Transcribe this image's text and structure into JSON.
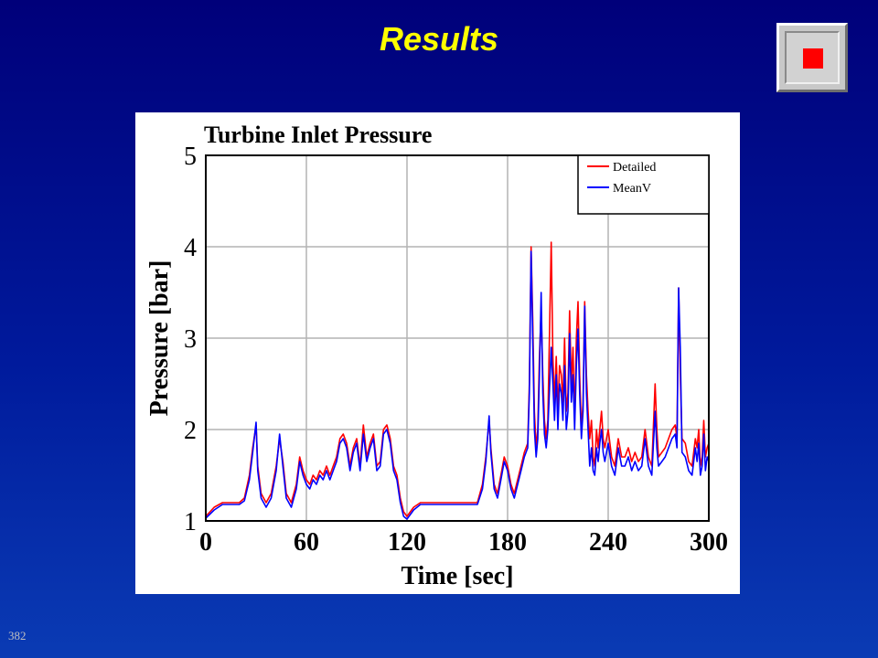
{
  "slide": {
    "title": "Results",
    "number": "382"
  },
  "colors": {
    "background": "#00007a",
    "title": "#ffff00",
    "detailed": "#ff0000",
    "meanv": "#0000ff"
  },
  "icons": {
    "stop": "stop-square-icon"
  },
  "chart_data": {
    "type": "line",
    "title": "Turbine Inlet Pressure",
    "xlabel": "Time [sec]",
    "ylabel": "Pressure [bar]",
    "xlim": [
      0,
      300
    ],
    "ylim": [
      1,
      5
    ],
    "xticks": [
      0,
      60,
      120,
      180,
      240,
      300
    ],
    "yticks": [
      1,
      2,
      3,
      4,
      5
    ],
    "grid": true,
    "legend": {
      "position": "top-right",
      "entries": [
        "Detailed",
        "MeanV"
      ]
    },
    "series": [
      {
        "name": "Detailed",
        "color": "#ff0000",
        "points": [
          [
            0,
            1.05
          ],
          [
            5,
            1.15
          ],
          [
            10,
            1.2
          ],
          [
            15,
            1.2
          ],
          [
            20,
            1.2
          ],
          [
            23,
            1.25
          ],
          [
            26,
            1.5
          ],
          [
            28,
            1.8
          ],
          [
            30,
            2.05
          ],
          [
            31,
            1.6
          ],
          [
            33,
            1.3
          ],
          [
            36,
            1.2
          ],
          [
            39,
            1.3
          ],
          [
            42,
            1.6
          ],
          [
            44,
            1.9
          ],
          [
            46,
            1.65
          ],
          [
            48,
            1.3
          ],
          [
            51,
            1.2
          ],
          [
            54,
            1.4
          ],
          [
            56,
            1.7
          ],
          [
            58,
            1.55
          ],
          [
            60,
            1.45
          ],
          [
            62,
            1.4
          ],
          [
            64,
            1.5
          ],
          [
            66,
            1.45
          ],
          [
            68,
            1.55
          ],
          [
            70,
            1.5
          ],
          [
            72,
            1.6
          ],
          [
            74,
            1.5
          ],
          [
            76,
            1.6
          ],
          [
            78,
            1.7
          ],
          [
            80,
            1.9
          ],
          [
            82,
            1.95
          ],
          [
            84,
            1.85
          ],
          [
            86,
            1.6
          ],
          [
            88,
            1.8
          ],
          [
            90,
            1.9
          ],
          [
            92,
            1.6
          ],
          [
            94,
            2.05
          ],
          [
            96,
            1.7
          ],
          [
            98,
            1.85
          ],
          [
            100,
            1.95
          ],
          [
            102,
            1.6
          ],
          [
            104,
            1.65
          ],
          [
            106,
            2.0
          ],
          [
            108,
            2.05
          ],
          [
            110,
            1.9
          ],
          [
            112,
            1.6
          ],
          [
            114,
            1.5
          ],
          [
            116,
            1.25
          ],
          [
            118,
            1.1
          ],
          [
            120,
            1.05
          ],
          [
            124,
            1.15
          ],
          [
            128,
            1.2
          ],
          [
            140,
            1.2
          ],
          [
            155,
            1.2
          ],
          [
            162,
            1.2
          ],
          [
            165,
            1.4
          ],
          [
            167,
            1.7
          ],
          [
            169,
            2.1
          ],
          [
            170,
            1.8
          ],
          [
            172,
            1.4
          ],
          [
            174,
            1.3
          ],
          [
            176,
            1.5
          ],
          [
            178,
            1.7
          ],
          [
            180,
            1.6
          ],
          [
            182,
            1.4
          ],
          [
            184,
            1.3
          ],
          [
            186,
            1.45
          ],
          [
            188,
            1.6
          ],
          [
            190,
            1.75
          ],
          [
            192,
            1.85
          ],
          [
            193,
            2.5
          ],
          [
            194,
            4.0
          ],
          [
            195,
            3.2
          ],
          [
            196,
            2.2
          ],
          [
            197,
            1.8
          ],
          [
            198,
            2.0
          ],
          [
            199,
            2.8
          ],
          [
            200,
            3.3
          ],
          [
            201,
            2.6
          ],
          [
            202,
            2.1
          ],
          [
            203,
            1.9
          ],
          [
            204,
            2.1
          ],
          [
            206,
            4.05
          ],
          [
            207,
            2.8
          ],
          [
            208,
            2.3
          ],
          [
            209,
            2.8
          ],
          [
            210,
            2.2
          ],
          [
            211,
            2.7
          ],
          [
            212,
            2.6
          ],
          [
            213,
            2.3
          ],
          [
            214,
            3.0
          ],
          [
            215,
            2.2
          ],
          [
            216,
            2.4
          ],
          [
            217,
            3.3
          ],
          [
            218,
            2.5
          ],
          [
            219,
            2.9
          ],
          [
            220,
            2.1
          ],
          [
            221,
            3.0
          ],
          [
            222,
            3.4
          ],
          [
            223,
            2.6
          ],
          [
            224,
            2.0
          ],
          [
            225,
            2.3
          ],
          [
            226,
            3.4
          ],
          [
            227,
            2.6
          ],
          [
            228,
            2.2
          ],
          [
            229,
            1.9
          ],
          [
            230,
            2.1
          ],
          [
            231,
            1.7
          ],
          [
            232,
            1.6
          ],
          [
            233,
            2.0
          ],
          [
            234,
            1.8
          ],
          [
            235,
            2.0
          ],
          [
            236,
            2.2
          ],
          [
            237,
            1.9
          ],
          [
            238,
            1.8
          ],
          [
            240,
            2.0
          ],
          [
            242,
            1.7
          ],
          [
            244,
            1.6
          ],
          [
            246,
            1.9
          ],
          [
            248,
            1.7
          ],
          [
            250,
            1.7
          ],
          [
            252,
            1.8
          ],
          [
            254,
            1.65
          ],
          [
            256,
            1.75
          ],
          [
            258,
            1.65
          ],
          [
            260,
            1.7
          ],
          [
            262,
            2.0
          ],
          [
            264,
            1.7
          ],
          [
            266,
            1.6
          ],
          [
            268,
            2.5
          ],
          [
            269,
            2.0
          ],
          [
            270,
            1.7
          ],
          [
            272,
            1.75
          ],
          [
            274,
            1.8
          ],
          [
            276,
            1.9
          ],
          [
            278,
            2.0
          ],
          [
            280,
            2.05
          ],
          [
            281,
            1.9
          ],
          [
            282,
            3.55
          ],
          [
            283,
            2.6
          ],
          [
            284,
            1.9
          ],
          [
            286,
            1.85
          ],
          [
            288,
            1.65
          ],
          [
            290,
            1.6
          ],
          [
            292,
            1.9
          ],
          [
            293,
            1.8
          ],
          [
            294,
            2.0
          ],
          [
            295,
            1.6
          ],
          [
            296,
            1.7
          ],
          [
            297,
            2.1
          ],
          [
            298,
            1.7
          ],
          [
            299,
            1.8
          ],
          [
            300,
            1.85
          ]
        ]
      },
      {
        "name": "MeanV",
        "color": "#0000ff",
        "points": [
          [
            0,
            1.03
          ],
          [
            5,
            1.12
          ],
          [
            10,
            1.18
          ],
          [
            15,
            1.18
          ],
          [
            20,
            1.18
          ],
          [
            23,
            1.22
          ],
          [
            26,
            1.45
          ],
          [
            28,
            1.75
          ],
          [
            30,
            2.08
          ],
          [
            31,
            1.55
          ],
          [
            33,
            1.25
          ],
          [
            36,
            1.15
          ],
          [
            39,
            1.25
          ],
          [
            42,
            1.55
          ],
          [
            44,
            1.95
          ],
          [
            46,
            1.6
          ],
          [
            48,
            1.25
          ],
          [
            51,
            1.15
          ],
          [
            54,
            1.35
          ],
          [
            56,
            1.65
          ],
          [
            58,
            1.5
          ],
          [
            60,
            1.4
          ],
          [
            62,
            1.35
          ],
          [
            64,
            1.45
          ],
          [
            66,
            1.4
          ],
          [
            68,
            1.5
          ],
          [
            70,
            1.45
          ],
          [
            72,
            1.55
          ],
          [
            74,
            1.45
          ],
          [
            76,
            1.55
          ],
          [
            78,
            1.65
          ],
          [
            80,
            1.85
          ],
          [
            82,
            1.9
          ],
          [
            84,
            1.8
          ],
          [
            86,
            1.55
          ],
          [
            88,
            1.75
          ],
          [
            90,
            1.85
          ],
          [
            92,
            1.55
          ],
          [
            94,
            1.95
          ],
          [
            96,
            1.65
          ],
          [
            98,
            1.8
          ],
          [
            100,
            1.9
          ],
          [
            102,
            1.55
          ],
          [
            104,
            1.6
          ],
          [
            106,
            1.95
          ],
          [
            108,
            2.0
          ],
          [
            110,
            1.85
          ],
          [
            112,
            1.55
          ],
          [
            114,
            1.45
          ],
          [
            116,
            1.2
          ],
          [
            118,
            1.05
          ],
          [
            120,
            1.02
          ],
          [
            124,
            1.12
          ],
          [
            128,
            1.18
          ],
          [
            140,
            1.18
          ],
          [
            155,
            1.18
          ],
          [
            162,
            1.18
          ],
          [
            165,
            1.35
          ],
          [
            167,
            1.65
          ],
          [
            169,
            2.15
          ],
          [
            170,
            1.75
          ],
          [
            172,
            1.35
          ],
          [
            174,
            1.25
          ],
          [
            176,
            1.45
          ],
          [
            178,
            1.65
          ],
          [
            180,
            1.55
          ],
          [
            182,
            1.35
          ],
          [
            184,
            1.25
          ],
          [
            186,
            1.4
          ],
          [
            188,
            1.55
          ],
          [
            190,
            1.7
          ],
          [
            192,
            1.8
          ],
          [
            193,
            2.4
          ],
          [
            194,
            3.95
          ],
          [
            195,
            3.0
          ],
          [
            196,
            2.0
          ],
          [
            197,
            1.7
          ],
          [
            198,
            1.9
          ],
          [
            199,
            2.6
          ],
          [
            200,
            3.5
          ],
          [
            201,
            2.4
          ],
          [
            202,
            1.95
          ],
          [
            203,
            1.8
          ],
          [
            204,
            2.0
          ],
          [
            206,
            2.9
          ],
          [
            207,
            2.5
          ],
          [
            208,
            2.1
          ],
          [
            209,
            2.6
          ],
          [
            210,
            2.0
          ],
          [
            211,
            2.5
          ],
          [
            212,
            2.4
          ],
          [
            213,
            2.1
          ],
          [
            214,
            2.7
          ],
          [
            215,
            2.0
          ],
          [
            216,
            2.2
          ],
          [
            217,
            3.05
          ],
          [
            218,
            2.3
          ],
          [
            219,
            2.6
          ],
          [
            220,
            2.0
          ],
          [
            221,
            2.7
          ],
          [
            222,
            3.1
          ],
          [
            223,
            2.4
          ],
          [
            224,
            1.9
          ],
          [
            225,
            2.2
          ],
          [
            226,
            3.35
          ],
          [
            227,
            2.4
          ],
          [
            228,
            2.0
          ],
          [
            229,
            1.6
          ],
          [
            230,
            1.8
          ],
          [
            231,
            1.55
          ],
          [
            232,
            1.5
          ],
          [
            233,
            1.8
          ],
          [
            234,
            1.65
          ],
          [
            235,
            1.85
          ],
          [
            236,
            2.0
          ],
          [
            237,
            1.75
          ],
          [
            238,
            1.65
          ],
          [
            240,
            1.85
          ],
          [
            242,
            1.6
          ],
          [
            244,
            1.5
          ],
          [
            246,
            1.8
          ],
          [
            248,
            1.6
          ],
          [
            250,
            1.6
          ],
          [
            252,
            1.7
          ],
          [
            254,
            1.55
          ],
          [
            256,
            1.65
          ],
          [
            258,
            1.55
          ],
          [
            260,
            1.6
          ],
          [
            262,
            1.9
          ],
          [
            264,
            1.6
          ],
          [
            266,
            1.5
          ],
          [
            268,
            2.2
          ],
          [
            269,
            1.8
          ],
          [
            270,
            1.6
          ],
          [
            272,
            1.65
          ],
          [
            274,
            1.7
          ],
          [
            276,
            1.8
          ],
          [
            278,
            1.9
          ],
          [
            280,
            1.95
          ],
          [
            281,
            1.8
          ],
          [
            282,
            3.55
          ],
          [
            283,
            2.9
          ],
          [
            284,
            1.75
          ],
          [
            286,
            1.7
          ],
          [
            288,
            1.55
          ],
          [
            290,
            1.5
          ],
          [
            292,
            1.8
          ],
          [
            293,
            1.65
          ],
          [
            294,
            1.85
          ],
          [
            295,
            1.5
          ],
          [
            296,
            1.6
          ],
          [
            297,
            1.95
          ],
          [
            298,
            1.55
          ],
          [
            299,
            1.7
          ],
          [
            300,
            1.65
          ]
        ]
      }
    ]
  }
}
